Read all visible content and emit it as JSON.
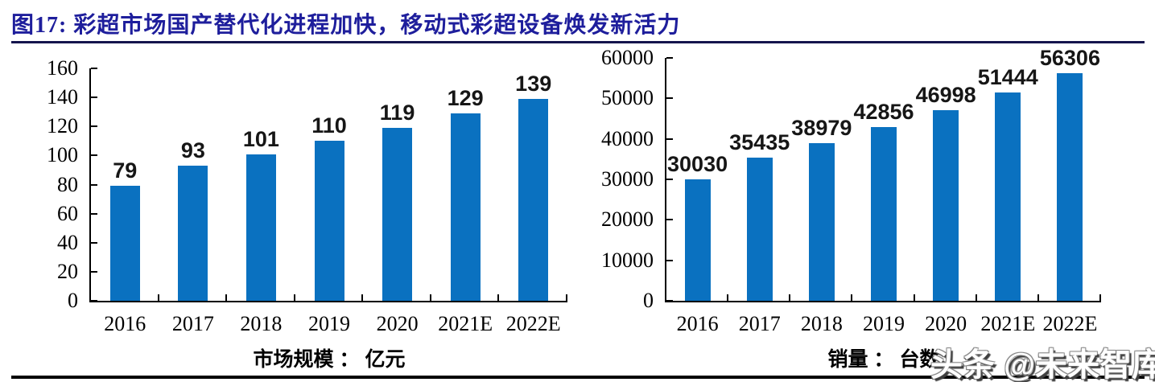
{
  "header": {
    "title": "图17:  彩超市场国产替代化进程加快，移动式彩超设备焕发新活力"
  },
  "watermark": {
    "text": "头条 @未来智库"
  },
  "colors": {
    "bar": "#0a71c0",
    "title_text": "#1e1e9c",
    "title_underline": "#15154d",
    "axis": "#000000",
    "bottom_rule": "#000000"
  },
  "chart_data": [
    {
      "type": "bar",
      "title": "",
      "categories": [
        "2016",
        "2017",
        "2018",
        "2019",
        "2020",
        "2021E",
        "2022E"
      ],
      "values": [
        79,
        93,
        101,
        110,
        119,
        129,
        139
      ],
      "xlabel": "市场规模 ： 亿元",
      "ylabel": "",
      "ylim": [
        0,
        160
      ],
      "yticks": [
        0,
        20,
        40,
        60,
        80,
        100,
        120,
        140,
        160
      ],
      "grid": false,
      "legend": null,
      "value_labels_shown": true
    },
    {
      "type": "bar",
      "title": "",
      "categories": [
        "2016",
        "2017",
        "2018",
        "2019",
        "2020",
        "2021E",
        "2022E"
      ],
      "values": [
        30030,
        35435,
        38979,
        42856,
        46998,
        51444,
        56306
      ],
      "xlabel": "销量 ： 台数",
      "ylabel": "",
      "ylim": [
        0,
        60000
      ],
      "yticks": [
        0,
        10000,
        20000,
        30000,
        40000,
        50000,
        60000
      ],
      "grid": false,
      "legend": null,
      "value_labels_shown": true
    }
  ]
}
